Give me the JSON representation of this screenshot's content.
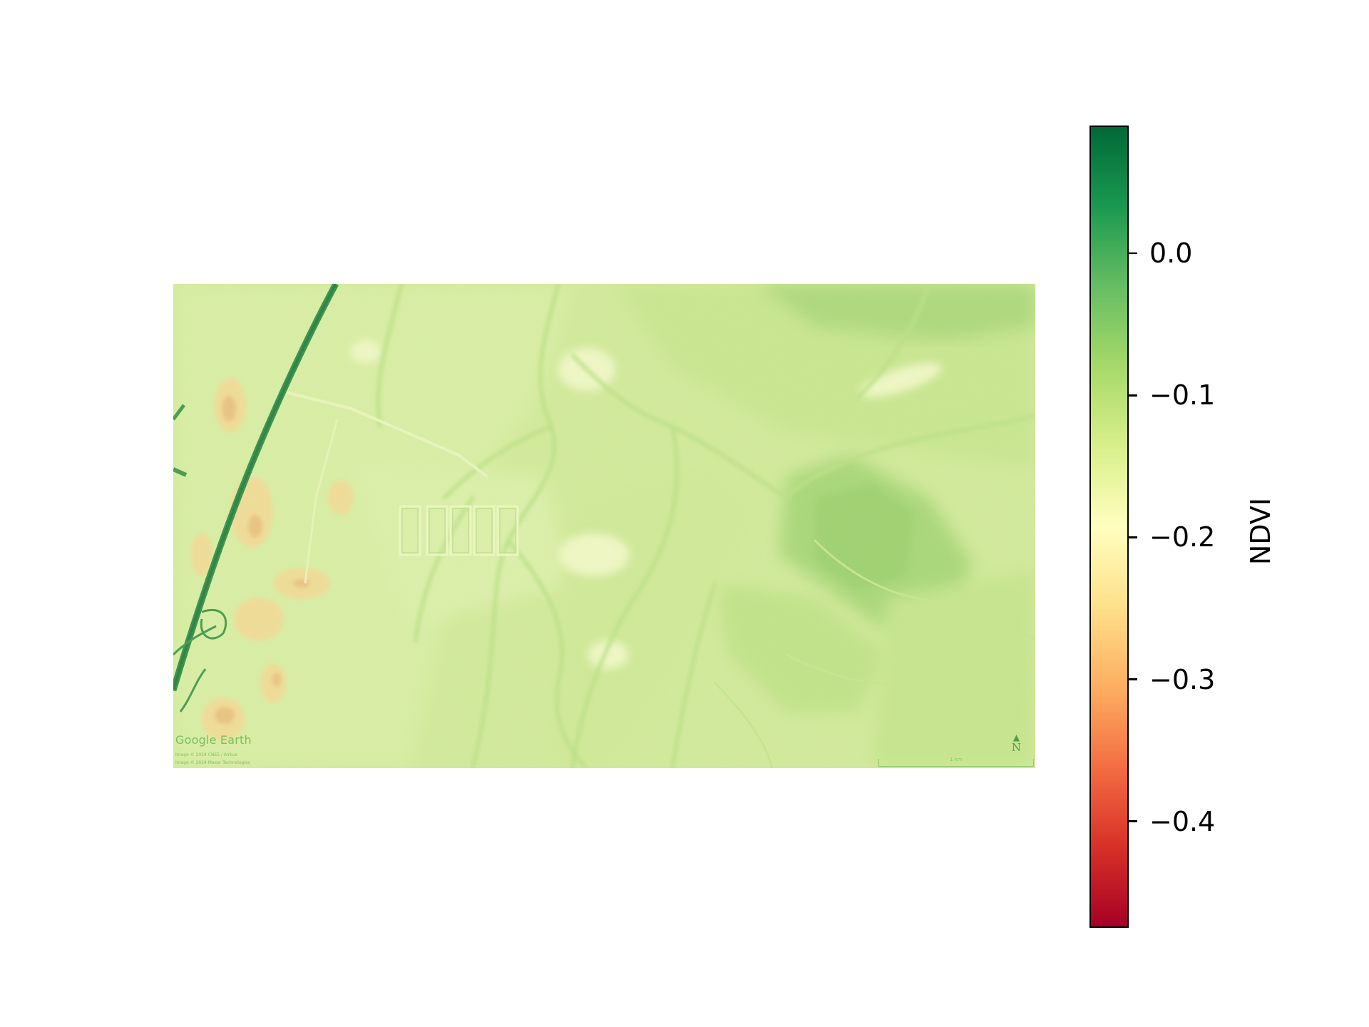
{
  "map": {
    "watermark": {
      "brand": "Google Earth",
      "credit_1": "Image © 2024 CNES / Airbus",
      "credit_2": "Image © 2024 Maxar Technologies",
      "north_label": "N",
      "scale_label": "1 km"
    }
  },
  "colorbar": {
    "label": "NDVI",
    "min": -0.475,
    "max": 0.09,
    "colormap": "RdYlGn",
    "ticks": [
      {
        "value": 0.0,
        "label": "0.0"
      },
      {
        "value": -0.1,
        "label": "−0.1"
      },
      {
        "value": -0.2,
        "label": "−0.2"
      },
      {
        "value": -0.3,
        "label": "−0.3"
      },
      {
        "value": -0.4,
        "label": "−0.4"
      }
    ],
    "colors": {
      "high": "#0b6e36",
      "mid_high": "#7cc462",
      "mid": "#fefebe",
      "mid_low": "#f8a462",
      "low": "#a50026"
    }
  }
}
